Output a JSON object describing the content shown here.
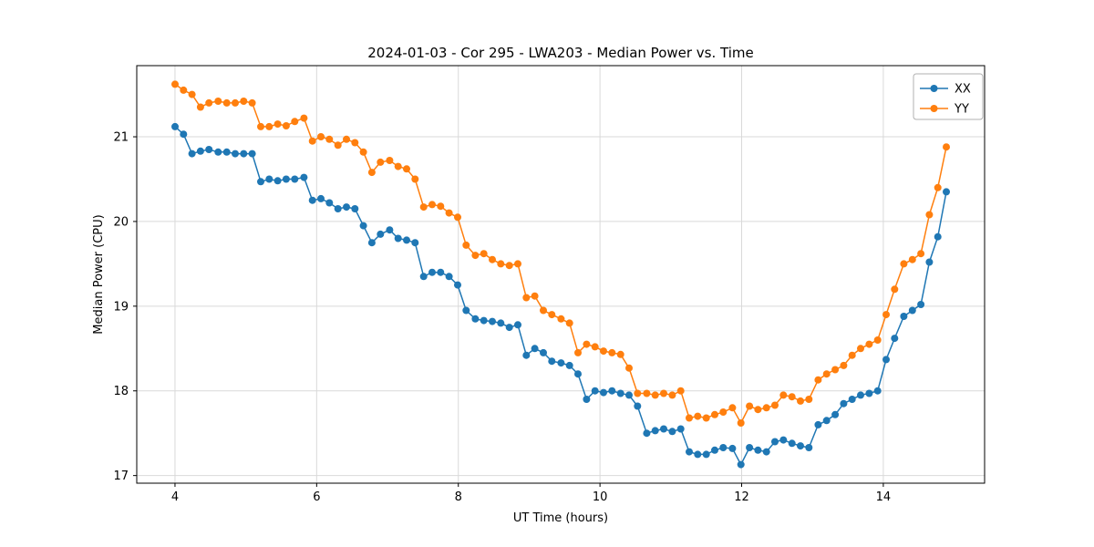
{
  "chart_data": {
    "type": "line",
    "title": "2024-01-03 - Cor 295 - LWA203 - Median Power vs. Time",
    "xlabel": "UT Time (hours)",
    "ylabel": "Median Power (CPU)",
    "xlim": [
      3.46,
      15.43
    ],
    "ylim": [
      16.91,
      21.84
    ],
    "x_ticks": [
      4,
      6,
      8,
      10,
      12,
      14
    ],
    "y_ticks": [
      17,
      18,
      19,
      20,
      21
    ],
    "grid": true,
    "legend_position": "upper right",
    "marker": "circle",
    "colors": {
      "xx": "#1f77b4",
      "yy": "#ff7f0e",
      "grid": "#d9d9d9",
      "spine": "#000000",
      "background": "#ffffff"
    },
    "x": [
      4.0,
      4.12,
      4.24,
      4.36,
      4.48,
      4.61,
      4.73,
      4.85,
      4.97,
      5.09,
      5.21,
      5.33,
      5.45,
      5.57,
      5.69,
      5.82,
      5.94,
      6.06,
      6.18,
      6.3,
      6.42,
      6.54,
      6.66,
      6.78,
      6.9,
      7.03,
      7.15,
      7.27,
      7.39,
      7.51,
      7.63,
      7.75,
      7.87,
      7.99,
      8.11,
      8.24,
      8.36,
      8.48,
      8.6,
      8.72,
      8.84,
      8.96,
      9.08,
      9.2,
      9.32,
      9.45,
      9.57,
      9.69,
      9.81,
      9.93,
      10.05,
      10.17,
      10.29,
      10.41,
      10.53,
      10.66,
      10.78,
      10.9,
      11.02,
      11.14,
      11.26,
      11.38,
      11.5,
      11.62,
      11.74,
      11.87,
      11.99,
      12.11,
      12.23,
      12.35,
      12.47,
      12.59,
      12.71,
      12.83,
      12.95,
      13.08,
      13.2,
      13.32,
      13.44,
      13.56,
      13.68,
      13.8,
      13.92,
      14.04,
      14.16,
      14.29,
      14.41,
      14.53,
      14.65,
      14.77,
      14.89
    ],
    "series": [
      {
        "name": "XX",
        "color": "#1f77b4",
        "values": [
          21.12,
          21.03,
          20.8,
          20.83,
          20.85,
          20.82,
          20.82,
          20.8,
          20.8,
          20.8,
          20.47,
          20.5,
          20.48,
          20.5,
          20.5,
          20.52,
          20.25,
          20.27,
          20.22,
          20.15,
          20.17,
          20.15,
          19.95,
          19.75,
          19.85,
          19.9,
          19.8,
          19.78,
          19.75,
          19.35,
          19.4,
          19.4,
          19.35,
          19.25,
          18.95,
          18.85,
          18.83,
          18.82,
          18.8,
          18.75,
          18.78,
          18.42,
          18.5,
          18.45,
          18.35,
          18.33,
          18.3,
          18.2,
          17.9,
          18.0,
          17.98,
          18.0,
          17.97,
          17.95,
          17.82,
          17.5,
          17.53,
          17.55,
          17.52,
          17.55,
          17.28,
          17.25,
          17.25,
          17.3,
          17.33,
          17.32,
          17.13,
          17.33,
          17.3,
          17.28,
          17.4,
          17.42,
          17.38,
          17.35,
          17.33,
          17.6,
          17.65,
          17.72,
          17.85,
          17.9,
          17.95,
          17.97,
          18.0,
          18.37,
          18.62,
          18.88,
          18.95,
          19.02,
          19.52,
          19.82,
          20.35
        ]
      },
      {
        "name": "YY",
        "color": "#ff7f0e",
        "values": [
          21.62,
          21.55,
          21.5,
          21.35,
          21.4,
          21.42,
          21.4,
          21.4,
          21.42,
          21.4,
          21.12,
          21.12,
          21.15,
          21.13,
          21.18,
          21.22,
          20.95,
          21.0,
          20.97,
          20.9,
          20.97,
          20.93,
          20.82,
          20.58,
          20.7,
          20.72,
          20.65,
          20.62,
          20.5,
          20.17,
          20.2,
          20.18,
          20.1,
          20.05,
          19.72,
          19.6,
          19.62,
          19.55,
          19.5,
          19.48,
          19.5,
          19.1,
          19.12,
          18.95,
          18.9,
          18.85,
          18.8,
          18.45,
          18.55,
          18.52,
          18.47,
          18.45,
          18.43,
          18.27,
          17.97,
          17.97,
          17.95,
          17.97,
          17.95,
          18.0,
          17.68,
          17.7,
          17.68,
          17.72,
          17.75,
          17.8,
          17.62,
          17.82,
          17.78,
          17.8,
          17.83,
          17.95,
          17.93,
          17.88,
          17.9,
          18.13,
          18.2,
          18.25,
          18.3,
          18.42,
          18.5,
          18.55,
          18.6,
          18.9,
          19.2,
          19.5,
          19.55,
          19.62,
          20.08,
          20.4,
          20.88
        ]
      }
    ]
  }
}
